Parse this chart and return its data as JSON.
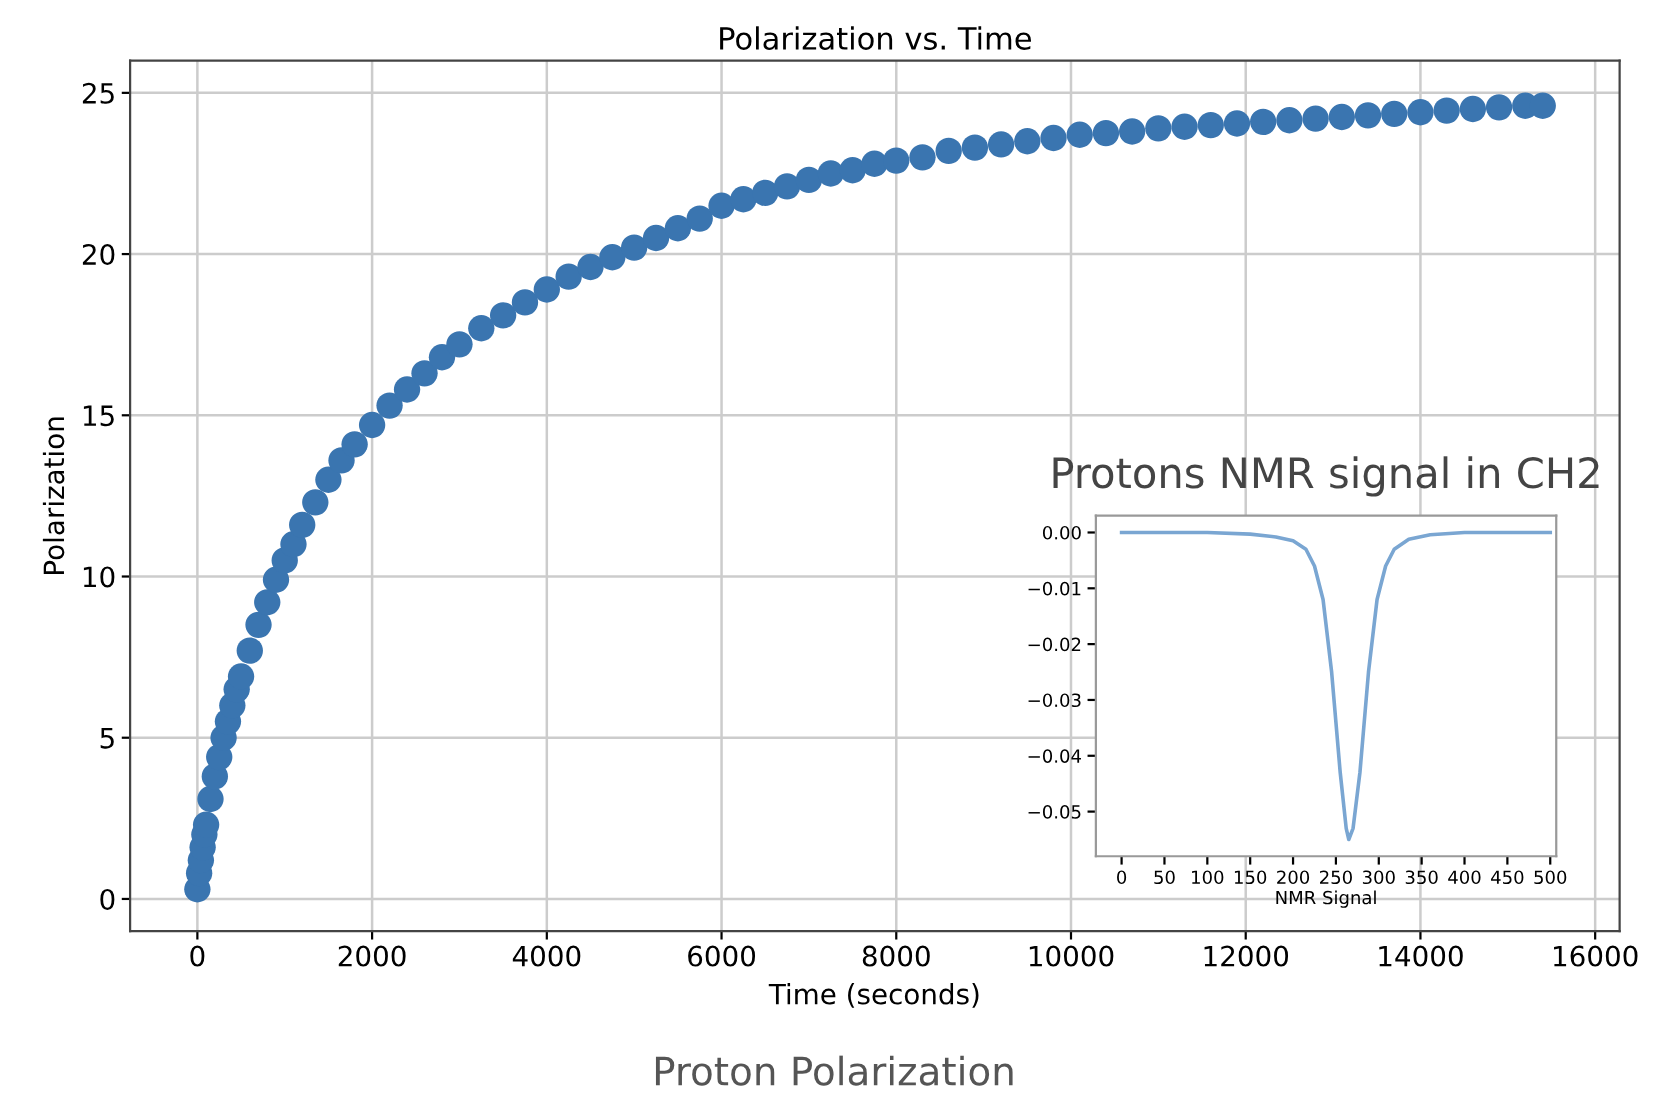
{
  "chart_data": [
    {
      "type": "scatter",
      "title": "Polarization vs. Time",
      "xlabel": "Time (seconds)",
      "ylabel": "Polarization",
      "color": "#3a75b0",
      "marker": "circle",
      "grid": true,
      "x": [
        0,
        20,
        40,
        60,
        80,
        100,
        150,
        200,
        250,
        300,
        350,
        400,
        450,
        500,
        600,
        700,
        800,
        900,
        1000,
        1100,
        1200,
        1350,
        1500,
        1650,
        1800,
        2000,
        2200,
        2400,
        2600,
        2800,
        3000,
        3250,
        3500,
        3750,
        4000,
        4250,
        4500,
        4750,
        5000,
        5250,
        5500,
        5750,
        6000,
        6250,
        6500,
        6750,
        7000,
        7250,
        7500,
        7750,
        8000,
        8300,
        8600,
        8900,
        9200,
        9500,
        9800,
        10100,
        10400,
        10700,
        11000,
        11300,
        11600,
        11900,
        12200,
        12500,
        12800,
        13100,
        13400,
        13700,
        14000,
        14300,
        14600,
        14900,
        15200,
        15400
      ],
      "values": [
        0.3,
        0.8,
        1.2,
        1.6,
        2.0,
        2.3,
        3.1,
        3.8,
        4.4,
        5.0,
        5.5,
        6.0,
        6.5,
        6.9,
        7.7,
        8.5,
        9.2,
        9.9,
        10.5,
        11.0,
        11.6,
        12.3,
        13.0,
        13.6,
        14.1,
        14.7,
        15.3,
        15.8,
        16.3,
        16.8,
        17.2,
        17.7,
        18.1,
        18.5,
        18.9,
        19.3,
        19.6,
        19.9,
        20.2,
        20.5,
        20.8,
        21.1,
        21.5,
        21.7,
        21.9,
        22.1,
        22.3,
        22.5,
        22.6,
        22.8,
        22.9,
        23.0,
        23.2,
        23.3,
        23.4,
        23.5,
        23.6,
        23.7,
        23.75,
        23.8,
        23.9,
        23.95,
        24.0,
        24.05,
        24.1,
        24.15,
        24.2,
        24.25,
        24.3,
        24.35,
        24.4,
        24.45,
        24.5,
        24.55,
        24.6,
        24.6
      ],
      "xlim": [
        -770,
        16280
      ],
      "ylim": [
        -1,
        26
      ],
      "xticks": [
        0,
        2000,
        4000,
        6000,
        8000,
        10000,
        12000,
        14000,
        16000
      ],
      "yticks": [
        0,
        5,
        10,
        15,
        20,
        25
      ],
      "annotations": [
        "Proton Polarization"
      ]
    },
    {
      "type": "line",
      "title": "Protons NMR signal in CH2",
      "xlabel": "NMR Signal",
      "color": "#7aa6d2",
      "grid": false,
      "x": [
        0,
        50,
        100,
        150,
        180,
        200,
        215,
        225,
        235,
        245,
        255,
        262,
        265,
        270,
        278,
        288,
        298,
        308,
        318,
        335,
        360,
        400,
        450,
        500
      ],
      "values": [
        0.0,
        0.0,
        0.0,
        -0.0003,
        -0.0008,
        -0.0015,
        -0.003,
        -0.006,
        -0.012,
        -0.025,
        -0.043,
        -0.053,
        -0.055,
        -0.053,
        -0.043,
        -0.025,
        -0.012,
        -0.006,
        -0.003,
        -0.0012,
        -0.0004,
        0.0,
        0.0,
        0.0
      ],
      "xlim": [
        -30,
        507
      ],
      "ylim": [
        -0.058,
        0.003
      ],
      "xticks": [
        0,
        50,
        100,
        150,
        200,
        250,
        300,
        350,
        400,
        450,
        500
      ],
      "yticks": [
        {
          "value": 0,
          "label": "0.00"
        },
        {
          "value": -0.01,
          "label": "−0.01"
        },
        {
          "value": -0.02,
          "label": "−0.02"
        },
        {
          "value": -0.03,
          "label": "−0.03"
        },
        {
          "value": -0.04,
          "label": "−0.04"
        },
        {
          "value": -0.05,
          "label": "−0.05"
        }
      ]
    }
  ]
}
